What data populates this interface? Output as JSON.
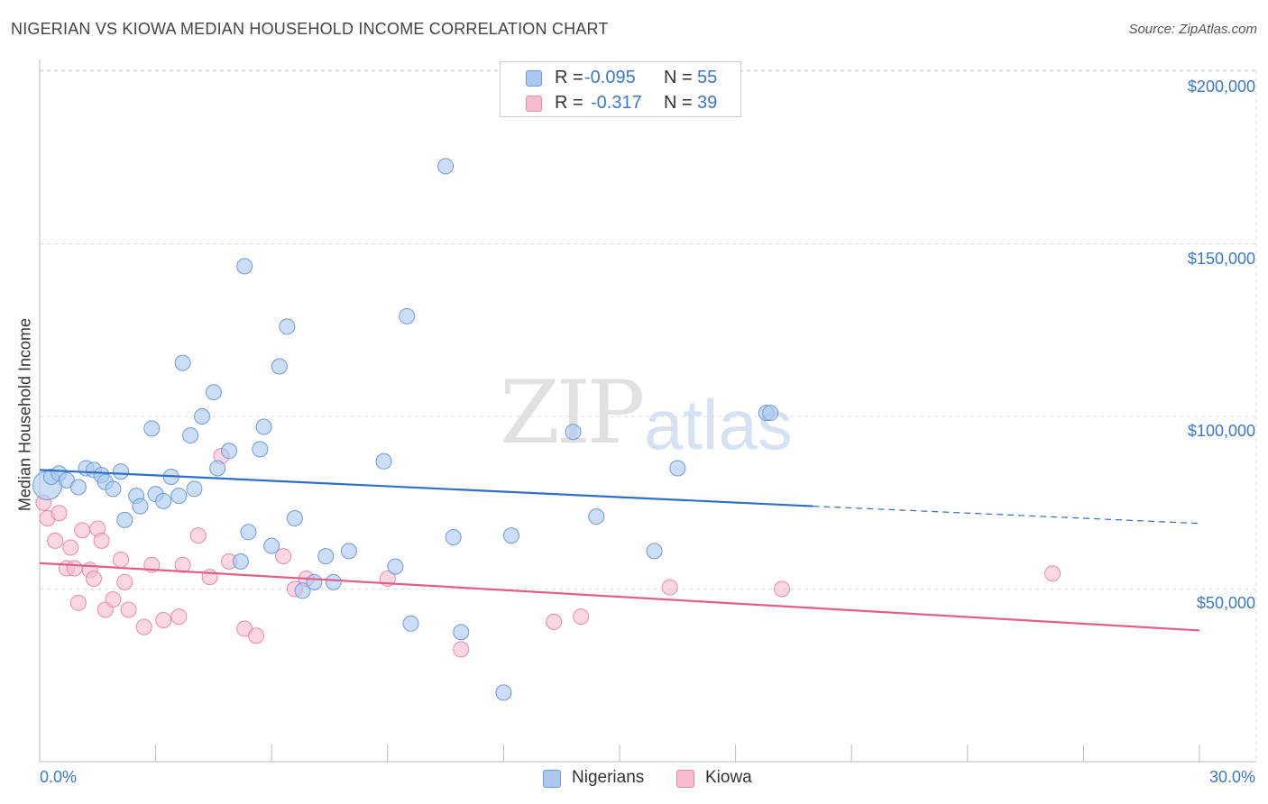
{
  "header": {
    "title": "NIGERIAN VS KIOWA MEDIAN HOUSEHOLD INCOME CORRELATION CHART",
    "source": "Source: ZipAtlas.com"
  },
  "watermark": {
    "zip": "ZIP",
    "atlas": "atlas"
  },
  "legend": {
    "rows": [
      {
        "r_label": "R =",
        "r_value": "-0.095",
        "n_label": "N =",
        "n_value": "55"
      },
      {
        "r_label": "R =",
        "r_value": "-0.317",
        "n_label": "N =",
        "n_value": "39"
      }
    ]
  },
  "bottom_legend": {
    "items": [
      {
        "label": "Nigerians"
      },
      {
        "label": "Kiowa"
      }
    ]
  },
  "axes": {
    "x_min_label": "0.0%",
    "x_max_label": "30.0%",
    "y_title": "Median Household Income",
    "y_ticks": [
      "$200,000",
      "$150,000",
      "$100,000",
      "$50,000"
    ]
  },
  "colors": {
    "nigerians_fill": "#aac8ef",
    "nigerians_stroke": "#6d9bd8",
    "nigerians_line": "#2f6fc8",
    "kiowa_fill": "#f6bcd0",
    "kiowa_stroke": "#e88aab",
    "kiowa_line": "#e0608b",
    "axis_label": "#3a78c9"
  },
  "chart_data": {
    "type": "scatter",
    "title": "NIGERIAN VS KIOWA MEDIAN HOUSEHOLD INCOME CORRELATION CHART",
    "xlabel": "",
    "ylabel": "Median Household Income",
    "xlim": [
      0,
      30
    ],
    "ylim": [
      0,
      205000
    ],
    "x_unit": "%",
    "y_ticks": [
      50000,
      100000,
      150000,
      200000
    ],
    "grid": true,
    "series": [
      {
        "name": "Nigerians",
        "r": -0.095,
        "n": 55,
        "trend": {
          "x": [
            0,
            20
          ],
          "y": [
            84500,
            74000
          ],
          "dashed_to": [
            30,
            69000
          ]
        },
        "points": [
          [
            0.2,
            80000
          ],
          [
            0.3,
            82500
          ],
          [
            0.5,
            83500
          ],
          [
            0.7,
            81500
          ],
          [
            1.0,
            79500
          ],
          [
            1.2,
            85000
          ],
          [
            1.4,
            84500
          ],
          [
            1.6,
            83000
          ],
          [
            1.7,
            81000
          ],
          [
            1.9,
            79000
          ],
          [
            2.1,
            84000
          ],
          [
            2.2,
            70000
          ],
          [
            2.5,
            77000
          ],
          [
            2.6,
            74000
          ],
          [
            2.9,
            96500
          ],
          [
            3.0,
            77500
          ],
          [
            3.2,
            75500
          ],
          [
            3.4,
            82500
          ],
          [
            3.6,
            77000
          ],
          [
            3.7,
            115500
          ],
          [
            3.9,
            94500
          ],
          [
            4.0,
            79000
          ],
          [
            4.2,
            100000
          ],
          [
            4.5,
            107000
          ],
          [
            4.6,
            85000
          ],
          [
            4.9,
            90000
          ],
          [
            5.2,
            58000
          ],
          [
            5.3,
            143500
          ],
          [
            5.4,
            66500
          ],
          [
            5.7,
            90500
          ],
          [
            5.8,
            97000
          ],
          [
            6.0,
            62500
          ],
          [
            6.2,
            114500
          ],
          [
            6.4,
            126000
          ],
          [
            6.6,
            70500
          ],
          [
            6.8,
            49500
          ],
          [
            7.1,
            52000
          ],
          [
            7.4,
            59500
          ],
          [
            7.6,
            52000
          ],
          [
            8.0,
            61000
          ],
          [
            8.9,
            87000
          ],
          [
            9.2,
            56500
          ],
          [
            9.5,
            129000
          ],
          [
            9.6,
            40000
          ],
          [
            10.5,
            172500
          ],
          [
            10.7,
            65000
          ],
          [
            10.9,
            37500
          ],
          [
            12.0,
            20000
          ],
          [
            12.2,
            65500
          ],
          [
            13.8,
            95500
          ],
          [
            14.4,
            71000
          ],
          [
            15.9,
            61000
          ],
          [
            16.5,
            85000
          ],
          [
            18.8,
            101000
          ],
          [
            18.9,
            101000
          ]
        ]
      },
      {
        "name": "Kiowa",
        "r": -0.317,
        "n": 39,
        "trend": {
          "x": [
            0,
            30
          ],
          "y": [
            57500,
            38000
          ]
        },
        "points": [
          [
            0.1,
            75000
          ],
          [
            0.2,
            70500
          ],
          [
            0.4,
            64000
          ],
          [
            0.5,
            72000
          ],
          [
            0.7,
            56000
          ],
          [
            0.8,
            62000
          ],
          [
            0.9,
            56000
          ],
          [
            1.0,
            46000
          ],
          [
            1.1,
            67000
          ],
          [
            1.3,
            55500
          ],
          [
            1.4,
            53000
          ],
          [
            1.5,
            67500
          ],
          [
            1.6,
            64000
          ],
          [
            1.7,
            44000
          ],
          [
            1.9,
            47000
          ],
          [
            2.1,
            58500
          ],
          [
            2.2,
            52000
          ],
          [
            2.3,
            44000
          ],
          [
            2.7,
            39000
          ],
          [
            2.9,
            57000
          ],
          [
            3.2,
            41000
          ],
          [
            3.6,
            42000
          ],
          [
            3.7,
            57000
          ],
          [
            4.1,
            65500
          ],
          [
            4.4,
            53500
          ],
          [
            4.7,
            88500
          ],
          [
            4.9,
            58000
          ],
          [
            5.3,
            38500
          ],
          [
            5.6,
            36500
          ],
          [
            6.3,
            59500
          ],
          [
            6.6,
            50000
          ],
          [
            6.9,
            53000
          ],
          [
            9.0,
            53000
          ],
          [
            10.9,
            32500
          ],
          [
            13.3,
            40500
          ],
          [
            14.0,
            42000
          ],
          [
            16.3,
            50500
          ],
          [
            19.2,
            50000
          ],
          [
            26.2,
            54500
          ]
        ]
      }
    ]
  }
}
